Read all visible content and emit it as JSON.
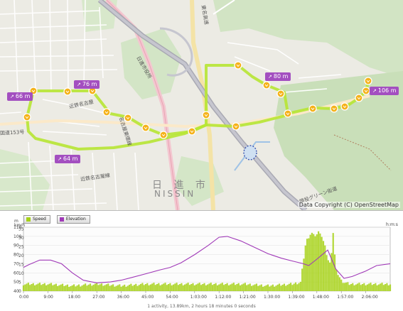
{
  "map": {
    "attribution": "Data Copyright (C) OpenStreetMap",
    "city_name_jp": "日 進 市",
    "city_name_romaji": "NISSIN",
    "road_labels": [
      "近鉄名古屋",
      "名古屋東環線",
      "近鉄名古屋線",
      "東名高速",
      "猿投グリーン街道",
      "日進市役所",
      "国道153号"
    ],
    "elevation_markers": [
      {
        "label": "66 m"
      },
      {
        "label": "76 m"
      },
      {
        "label": "80 m"
      },
      {
        "label": "106 m"
      },
      {
        "label": "64 m"
      }
    ],
    "route_color": "#b7e533",
    "marker_color": "#f5b21a",
    "tag_color": "#a34fc0"
  },
  "chart": {
    "legend": [
      {
        "label": "Speed",
        "color": "#a6d116"
      },
      {
        "label": "Elevation",
        "color": "#a039b8"
      }
    ],
    "summary": "1 activity, 13.89km, 2 hours 18 minutes 0 seconds"
  },
  "chart_data": {
    "type": "bar",
    "x_ticks": [
      "0:00",
      "9:00",
      "18:00",
      "27:00",
      "36:00",
      "45:00",
      "54:00",
      "1:03:00",
      "1:12:00",
      "1:21:00",
      "1:30:00",
      "1:39:00",
      "1:48:00",
      "1:57:00",
      "2:06:00"
    ],
    "x_unit": "h:m:s",
    "y_left_label": "m",
    "y_left_ticks": [
      40,
      50,
      60,
      70,
      80,
      90,
      100,
      110
    ],
    "y_left_range": [
      40,
      110
    ],
    "y_right_label": "km/h",
    "y_right_ticks": [
      0,
      5,
      10,
      15,
      20,
      25,
      30,
      35
    ],
    "y_right_range": [
      0,
      36
    ],
    "series": [
      {
        "name": "Speed",
        "kind": "bar",
        "axis": "right",
        "color": "#a6d116",
        "x_minutes": [
          0,
          9,
          18,
          27,
          36,
          45,
          54,
          63,
          72,
          81,
          90,
          99,
          102,
          104,
          106,
          107,
          108,
          109,
          110,
          111,
          112,
          113,
          114,
          115,
          116,
          117,
          118,
          120,
          126,
          132
        ],
        "values": [
          4,
          4,
          3,
          4,
          3,
          4,
          4,
          4,
          4,
          4,
          3,
          4,
          5,
          28,
          33,
          31,
          32,
          34,
          30,
          25,
          18,
          15,
          33,
          12,
          9,
          6,
          5,
          4,
          4,
          4
        ]
      },
      {
        "name": "Elevation",
        "kind": "line",
        "axis": "left",
        "color": "#a039b8",
        "x_minutes": [
          0,
          2,
          6,
          10,
          14,
          18,
          22,
          27,
          32,
          36,
          40,
          45,
          50,
          54,
          58,
          63,
          68,
          72,
          75,
          80,
          85,
          90,
          95,
          99,
          103,
          105,
          108,
          110,
          112,
          113,
          115,
          118,
          121,
          126,
          130,
          135
        ],
        "values": [
          66,
          69,
          74,
          74,
          70,
          60,
          52,
          49,
          50,
          52,
          55,
          59,
          63,
          66,
          71,
          80,
          90,
          99,
          100,
          95,
          88,
          81,
          76,
          73,
          70,
          68,
          75,
          80,
          85,
          78,
          64,
          54,
          56,
          62,
          68,
          70
        ]
      }
    ]
  }
}
